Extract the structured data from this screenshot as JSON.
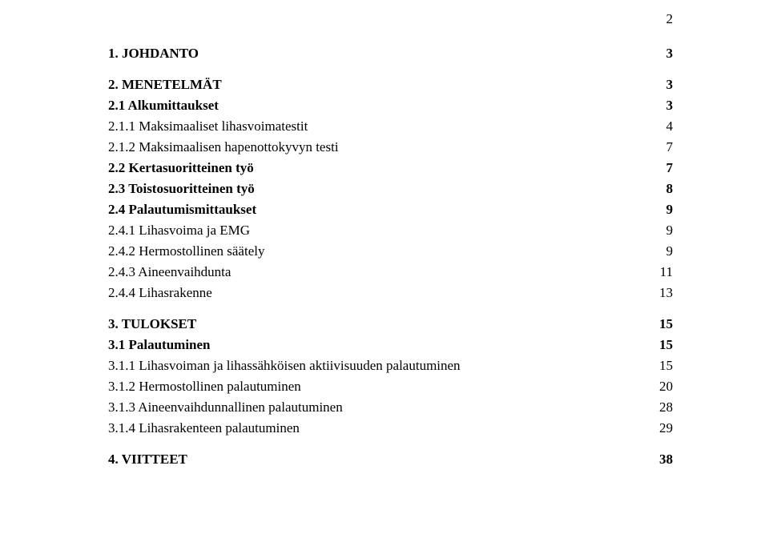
{
  "page_number": "2",
  "toc": [
    {
      "level": 1,
      "title": "1. JOHDANTO",
      "page": "3",
      "first": true
    },
    {
      "level": 1,
      "title": "2. MENETELMÄT",
      "page": "3"
    },
    {
      "level": 2,
      "title": "2.1 Alkumittaukset",
      "page": "3"
    },
    {
      "level": 3,
      "title": "2.1.1 Maksimaaliset lihasvoimatestit",
      "page": "4"
    },
    {
      "level": 3,
      "title": "2.1.2 Maksimaalisen hapenottokyvyn testi",
      "page": "7"
    },
    {
      "level": 2,
      "title": "2.2 Kertasuoritteinen työ",
      "page": "7"
    },
    {
      "level": 2,
      "title": "2.3 Toistosuoritteinen työ",
      "page": "8"
    },
    {
      "level": 2,
      "title": "2.4 Palautumismittaukset",
      "page": "9"
    },
    {
      "level": 3,
      "title": "2.4.1 Lihasvoima ja EMG",
      "page": "9"
    },
    {
      "level": 3,
      "title": "2.4.2 Hermostollinen säätely",
      "page": "9"
    },
    {
      "level": 3,
      "title": "2.4.3 Aineenvaihdunta",
      "page": "11"
    },
    {
      "level": 3,
      "title": "2.4.4 Lihasrakenne",
      "page": "13"
    },
    {
      "level": 1,
      "title": "3. TULOKSET",
      "page": "15"
    },
    {
      "level": 2,
      "title": "3.1 Palautuminen",
      "page": "15"
    },
    {
      "level": 3,
      "title": "3.1.1 Lihasvoiman ja lihassähköisen aktiivisuuden palautuminen",
      "page": "15"
    },
    {
      "level": 3,
      "title": "3.1.2 Hermostollinen palautuminen",
      "page": "20"
    },
    {
      "level": 3,
      "title": "3.1.3 Aineenvaihdunnallinen palautuminen",
      "page": "28"
    },
    {
      "level": 3,
      "title": "3.1.4 Lihasrakenteen palautuminen",
      "page": "29"
    },
    {
      "level": 1,
      "title": "4. VIITTEET",
      "page": "38"
    }
  ]
}
